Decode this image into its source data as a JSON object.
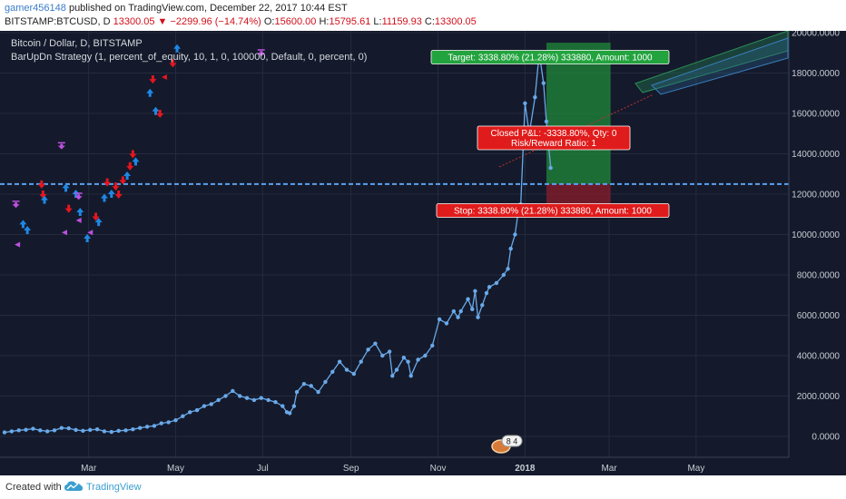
{
  "header": {
    "username": "gamer456148",
    "published_text": " published on TradingView.com, December 22, 2017 10:44 EST",
    "symbol": "BITSTAMP:BTCUSD, D",
    "last": "13300.05",
    "change_arrow": "▼",
    "change": "−2299.96 (−14.74%)",
    "open_label": "O:",
    "open": "15600.00",
    "high_label": "H:",
    "high": "15795.61",
    "low_label": "L:",
    "low": "11159.93",
    "close_label": "C:",
    "close": "13300.05"
  },
  "legend": {
    "series_title": "Bitcoin / Dollar, D, BITSTAMP",
    "strategy": "BarUpDn Strategy (1, percent_of_equity, 10, 1, 0, 100000, Default, 0, percent, 0)"
  },
  "footer": {
    "created_with": "Created with",
    "brand": "TradingView"
  },
  "colors": {
    "background": "#141a2b",
    "price": "#6aa9e9",
    "buy_arrow": "#1e88e5",
    "sell_arrow": "#e51520",
    "exit_marker": "#c050e0",
    "target_zone": "#1f8a3a",
    "stop_zone": "#8a1c2c",
    "dashed_line": "#5aa2f0"
  },
  "chart_data": {
    "type": "line",
    "title": "Bitcoin / Dollar, D, BITSTAMP",
    "xlabel": "",
    "ylabel": "",
    "ylim": [
      -1000,
      20500
    ],
    "y_ticks": [
      "20000.0000",
      "18000.0000",
      "16000.0000",
      "14000.0000",
      "12000.0000",
      "10000.0000",
      "8000.0000",
      "6000.0000",
      "4000.0000",
      "2000.0000",
      "0.0000"
    ],
    "y_tick_values": [
      20000,
      18000,
      16000,
      14000,
      12000,
      10000,
      8000,
      6000,
      4000,
      2000,
      0
    ],
    "x_ticks": [
      {
        "label": "Mar",
        "day": 59
      },
      {
        "label": "May",
        "day": 120
      },
      {
        "label": "Jul",
        "day": 181
      },
      {
        "label": "Sep",
        "day": 243
      },
      {
        "label": "Nov",
        "day": 304
      },
      {
        "label": "2018",
        "day": 365
      },
      {
        "label": "Mar",
        "day": 424
      },
      {
        "label": "May",
        "day": 485
      }
    ],
    "xlim_days": [
      0,
      550
    ],
    "grid": true,
    "series": [
      {
        "name": "",
        "points": [
          [
            0,
            200
          ],
          [
            5,
            250
          ],
          [
            10,
            300
          ],
          [
            15,
            330
          ],
          [
            20,
            380
          ],
          [
            25,
            300
          ],
          [
            30,
            250
          ],
          [
            35,
            300
          ],
          [
            40,
            420
          ],
          [
            45,
            400
          ],
          [
            50,
            320
          ],
          [
            55,
            280
          ],
          [
            60,
            320
          ],
          [
            65,
            350
          ],
          [
            70,
            250
          ],
          [
            75,
            220
          ],
          [
            80,
            280
          ],
          [
            85,
            300
          ],
          [
            90,
            350
          ],
          [
            95,
            420
          ],
          [
            100,
            480
          ],
          [
            105,
            520
          ],
          [
            110,
            650
          ],
          [
            115,
            700
          ],
          [
            120,
            800
          ],
          [
            125,
            1000
          ],
          [
            130,
            1200
          ],
          [
            135,
            1300
          ],
          [
            140,
            1500
          ],
          [
            145,
            1600
          ],
          [
            150,
            1800
          ],
          [
            155,
            2000
          ],
          [
            160,
            2250
          ],
          [
            165,
            2000
          ],
          [
            170,
            1900
          ],
          [
            175,
            1800
          ],
          [
            180,
            1900
          ],
          [
            185,
            1800
          ],
          [
            190,
            1700
          ],
          [
            195,
            1500
          ],
          [
            198,
            1200
          ],
          [
            200,
            1150
          ],
          [
            203,
            1500
          ],
          [
            205,
            2200
          ],
          [
            210,
            2600
          ],
          [
            215,
            2500
          ],
          [
            220,
            2200
          ],
          [
            225,
            2700
          ],
          [
            230,
            3200
          ],
          [
            235,
            3700
          ],
          [
            240,
            3300
          ],
          [
            245,
            3100
          ],
          [
            250,
            3700
          ],
          [
            255,
            4300
          ],
          [
            260,
            4600
          ],
          [
            265,
            4000
          ],
          [
            270,
            4200
          ],
          [
            272,
            3000
          ],
          [
            275,
            3300
          ],
          [
            280,
            3900
          ],
          [
            283,
            3700
          ],
          [
            285,
            3000
          ],
          [
            290,
            3800
          ],
          [
            295,
            4000
          ],
          [
            300,
            4500
          ],
          [
            305,
            5800
          ],
          [
            310,
            5600
          ],
          [
            315,
            6200
          ],
          [
            318,
            5900
          ],
          [
            320,
            6200
          ],
          [
            325,
            6800
          ],
          [
            328,
            6300
          ],
          [
            330,
            7200
          ],
          [
            332,
            5900
          ],
          [
            335,
            6500
          ],
          [
            338,
            7100
          ],
          [
            340,
            7400
          ],
          [
            345,
            7600
          ],
          [
            350,
            8000
          ],
          [
            353,
            8300
          ],
          [
            355,
            9300
          ],
          [
            358,
            10000
          ],
          [
            360,
            11000
          ],
          [
            362,
            11500
          ],
          [
            365,
            16500
          ],
          [
            368,
            15000
          ],
          [
            372,
            16800
          ],
          [
            375,
            19000
          ],
          [
            378,
            17500
          ],
          [
            380,
            15600
          ],
          [
            383,
            13300
          ]
        ]
      }
    ],
    "annotations": [
      {
        "text": "Target: 3338.80% (21.28%) 333880, Amount: 1000",
        "kind": "target"
      },
      {
        "text": "Closed P&L: -3338.80%, Qty: 0",
        "kind": "result"
      },
      {
        "text": "Risk/Reward Ratio: 1",
        "kind": "result"
      },
      {
        "text": "Stop: 3338.80% (21.28%) 333880, Amount: 1000",
        "kind": "stop"
      }
    ],
    "dashed_level": 12500,
    "event_badge": "8 4",
    "position_zone": {
      "entry": 12500,
      "target": 19500,
      "stop": 11200,
      "start_day": 380,
      "end_day": 425
    },
    "markers": [
      {
        "day": 8,
        "y": 11500,
        "kind": "exit"
      },
      {
        "day": 9,
        "y": 9500,
        "kind": "exit_tri"
      },
      {
        "day": 13,
        "y": 10500,
        "kind": "buy"
      },
      {
        "day": 16,
        "y": 10200,
        "kind": "buy"
      },
      {
        "day": 26,
        "y": 12500,
        "kind": "sell"
      },
      {
        "day": 27,
        "y": 12000,
        "kind": "sell"
      },
      {
        "day": 28,
        "y": 11700,
        "kind": "buy"
      },
      {
        "day": 40,
        "y": 14400,
        "kind": "exit"
      },
      {
        "day": 43,
        "y": 12300,
        "kind": "buy"
      },
      {
        "day": 45,
        "y": 11300,
        "kind": "sell"
      },
      {
        "day": 50,
        "y": 12000,
        "kind": "buy"
      },
      {
        "day": 52,
        "y": 11900,
        "kind": "exit"
      },
      {
        "day": 52,
        "y": 10700,
        "kind": "exit_tri"
      },
      {
        "day": 53,
        "y": 11100,
        "kind": "buy"
      },
      {
        "day": 42,
        "y": 10100,
        "kind": "exit_tri"
      },
      {
        "day": 58,
        "y": 9800,
        "kind": "buy"
      },
      {
        "day": 60,
        "y": 10100,
        "kind": "exit_tri"
      },
      {
        "day": 64,
        "y": 10900,
        "kind": "sell"
      },
      {
        "day": 66,
        "y": 10600,
        "kind": "buy"
      },
      {
        "day": 70,
        "y": 11800,
        "kind": "buy"
      },
      {
        "day": 72,
        "y": 12600,
        "kind": "sell"
      },
      {
        "day": 75,
        "y": 12000,
        "kind": "buy"
      },
      {
        "day": 78,
        "y": 12400,
        "kind": "sell"
      },
      {
        "day": 80,
        "y": 12000,
        "kind": "sell"
      },
      {
        "day": 83,
        "y": 12700,
        "kind": "sell"
      },
      {
        "day": 86,
        "y": 12900,
        "kind": "buy"
      },
      {
        "day": 88,
        "y": 13400,
        "kind": "sell"
      },
      {
        "day": 90,
        "y": 14000,
        "kind": "sell"
      },
      {
        "day": 92,
        "y": 13600,
        "kind": "buy"
      },
      {
        "day": 102,
        "y": 17000,
        "kind": "buy"
      },
      {
        "day": 104,
        "y": 17700,
        "kind": "sell"
      },
      {
        "day": 106,
        "y": 16100,
        "kind": "buy"
      },
      {
        "day": 109,
        "y": 16000,
        "kind": "sell"
      },
      {
        "day": 112,
        "y": 17800,
        "kind": "exit_tri"
      },
      {
        "day": 118,
        "y": 18500,
        "kind": "sell"
      },
      {
        "day": 121,
        "y": 19200,
        "kind": "buy"
      },
      {
        "day": 180,
        "y": 19000,
        "kind": "exit"
      }
    ]
  }
}
